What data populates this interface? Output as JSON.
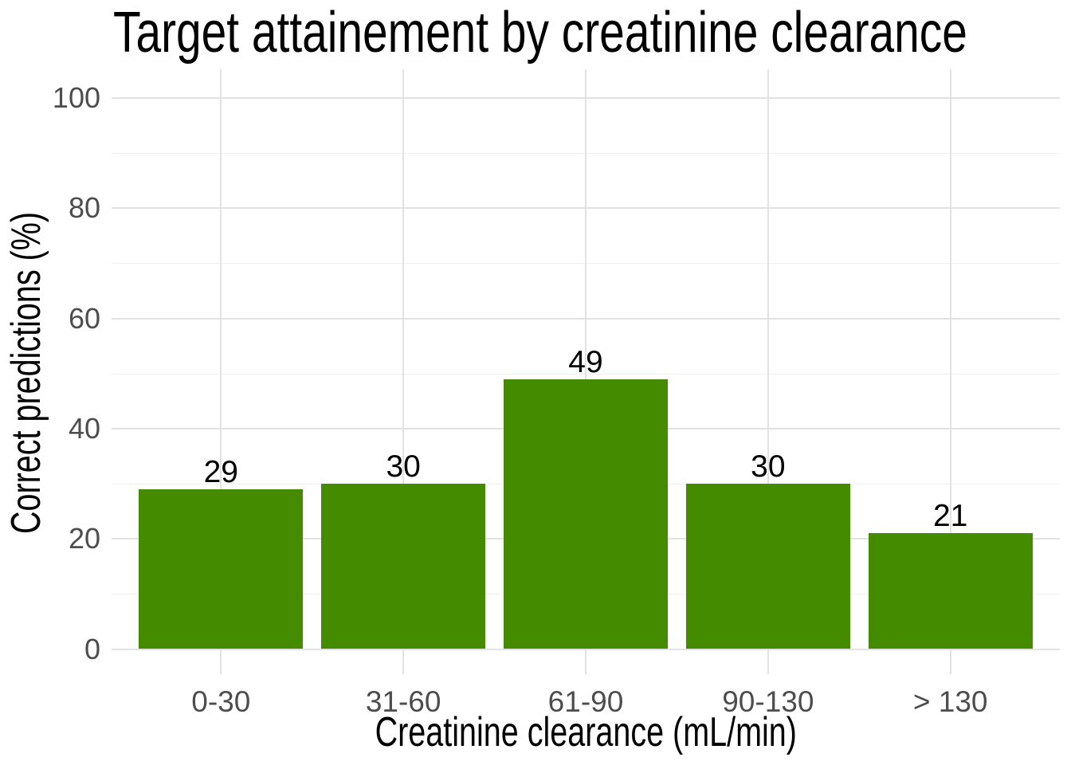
{
  "title": "Target attainement by creatinine clearance",
  "chart_data": {
    "type": "bar",
    "title": "Target attainement by creatinine clearance",
    "categories": [
      "0-30",
      "31-60",
      "61-90",
      "90-130",
      "> 130"
    ],
    "values": [
      29,
      30,
      49,
      30,
      21
    ],
    "bar_labels": [
      "29",
      "30",
      "49",
      "30",
      "21"
    ],
    "xlabel": "Creatinine clearance (mL/min)",
    "ylabel": "Correct predictions (%)",
    "ylim": [
      0,
      100
    ],
    "yticks": [
      0,
      20,
      40,
      60,
      80,
      100
    ],
    "yticks_minor": [
      10,
      30,
      50,
      70,
      90
    ],
    "ytick_labels": [
      "0",
      "20",
      "40",
      "60",
      "80",
      "100"
    ],
    "grid": "major and minor horizontal, major vertical at category centers",
    "legend": false,
    "colors": {
      "bar": "#458B00",
      "tick_label": "#4D4D4D",
      "grid_major": "#E2E2E2",
      "grid_minor": "#EFEFEF",
      "text": "#000000",
      "background": "#FFFFFF"
    }
  }
}
